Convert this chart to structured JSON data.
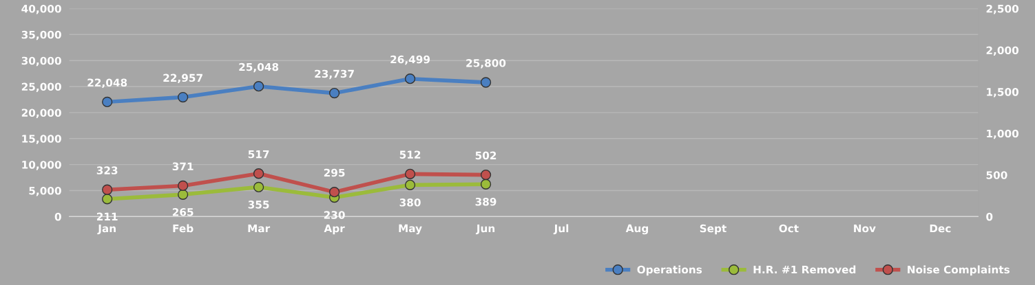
{
  "chart_data": {
    "type": "line",
    "categories": [
      "Jan",
      "Feb",
      "Mar",
      "Apr",
      "May",
      "Jun",
      "Jul",
      "Aug",
      "Sept",
      "Oct",
      "Nov",
      "Dec"
    ],
    "series": [
      {
        "name": "Operations",
        "color": "#4a7fc1",
        "values": [
          22048,
          22957,
          25048,
          23737,
          26499,
          25800,
          null,
          null,
          null,
          null,
          null,
          null
        ],
        "value_labels": [
          "22,048",
          "22,957",
          "25,048",
          "23,737",
          "26,499",
          "25,800",
          null,
          null,
          null,
          null,
          null,
          null
        ]
      },
      {
        "name": "H.R. #1 Removed",
        "color": "#9bbb3b",
        "axis": "y2",
        "values": [
          211,
          265,
          355,
          230,
          380,
          389,
          null,
          null,
          null,
          null,
          null,
          null
        ],
        "value_labels": [
          "211",
          "265",
          "355",
          "230",
          "380",
          "389",
          null,
          null,
          null,
          null,
          null,
          null
        ]
      },
      {
        "name": "Noise Complaints",
        "color": "#c0504d",
        "axis": "y2",
        "values": [
          323,
          371,
          517,
          295,
          512,
          502,
          null,
          null,
          null,
          null,
          null,
          null
        ],
        "value_labels": [
          "323",
          "371",
          "517",
          "295",
          "512",
          "502",
          null,
          null,
          null,
          null,
          null,
          null
        ]
      }
    ],
    "ylim": [
      0,
      40000
    ],
    "yticks": [
      {
        "value": 0,
        "label": "0"
      },
      {
        "value": 5000,
        "label": "5,000"
      },
      {
        "value": 10000,
        "label": "10,000"
      },
      {
        "value": 15000,
        "label": "15,000"
      },
      {
        "value": 20000,
        "label": "20,000"
      },
      {
        "value": 25000,
        "label": "25,000"
      },
      {
        "value": 30000,
        "label": "30,000"
      },
      {
        "value": 35000,
        "label": "35,000"
      },
      {
        "value": 40000,
        "label": "40,000"
      }
    ],
    "y2lim": [
      0,
      2500
    ],
    "y2ticks": [
      {
        "value": 0,
        "label": "0"
      },
      {
        "value": 500,
        "label": "500"
      },
      {
        "value": 1000,
        "label": "1,000"
      },
      {
        "value": 1500,
        "label": "1,500"
      },
      {
        "value": 2000,
        "label": "2,000"
      },
      {
        "value": 2500,
        "label": "2,500"
      }
    ],
    "grid": "y",
    "legend": "bottom right",
    "marker": "circle",
    "line_style": "solid"
  }
}
